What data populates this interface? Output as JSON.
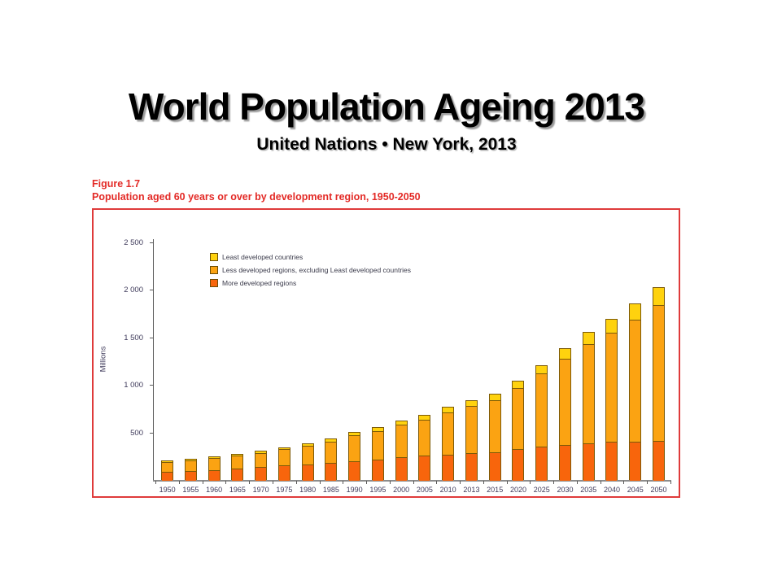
{
  "slide": {
    "title": "World Population Ageing 2013",
    "subtitle": "United Nations • New York, 2013"
  },
  "figure": {
    "label": "Figure 1.7",
    "caption": "Population aged 60 years or over by development region, 1950-2050"
  },
  "colors": {
    "caption_red": "#e32a26",
    "frame_red": "#df3b3b",
    "bar_outline": "#7c5a08",
    "axis_text": "#3e3a5a",
    "least_developed": "#ffd20e",
    "less_developed": "#fba312",
    "more_developed": "#f8650c"
  },
  "chart_data": {
    "type": "bar",
    "stacked": true,
    "title": "",
    "xlabel": "",
    "ylabel": "Millions",
    "ylim": [
      0,
      2500
    ],
    "ytick_step": 500,
    "ytick_labels": [
      "500",
      "1 000",
      "1 500",
      "2 000",
      "2 500"
    ],
    "grid": false,
    "legend_position": "top-left-inside",
    "legend_order": [
      2,
      1,
      0
    ],
    "categories": [
      "1950",
      "1955",
      "1960",
      "1965",
      "1970",
      "1975",
      "1980",
      "1985",
      "1990",
      "1995",
      "2000",
      "2005",
      "2010",
      "2013",
      "2015",
      "2020",
      "2025",
      "2030",
      "2035",
      "2040",
      "2045",
      "2050"
    ],
    "series": [
      {
        "name": "More developed regions",
        "color": "#f8650c",
        "values": [
          95,
          104,
          115,
          128,
          143,
          160,
          175,
          186,
          204,
          225,
          248,
          263,
          277,
          290,
          302,
          332,
          358,
          380,
          396,
          408,
          415,
          417
        ]
      },
      {
        "name": "Less developed regions, excluding Least developed countries",
        "color": "#fba312",
        "values": [
          99,
          111,
          123,
          136,
          152,
          170,
          195,
          226,
          276,
          301,
          340,
          380,
          446,
          500,
          546,
          648,
          770,
          905,
          1044,
          1150,
          1282,
          1430
        ]
      },
      {
        "name": "Least developed countries",
        "color": "#ffd20e",
        "values": [
          8,
          9,
          10,
          11,
          13,
          15,
          18,
          21,
          25,
          29,
          34,
          40,
          47,
          52,
          57,
          67,
          81,
          98,
          118,
          137,
          160,
          183
        ]
      }
    ]
  }
}
